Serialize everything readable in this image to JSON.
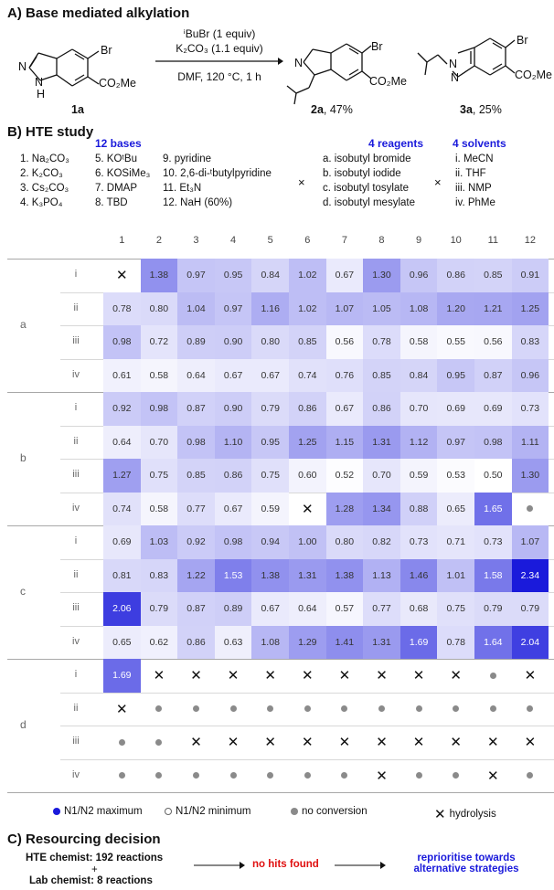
{
  "sectionA": {
    "title": "A) Base mediated alkylation",
    "reagent1": "ⁱBuBr (1 equiv)",
    "reagent2": "K₂CO₃ (1.1 equiv)",
    "conditions": "DMF, 120 °C, 1 h",
    "sm_label": "1a",
    "sm_ester": "CO₂Me",
    "sm_br": "Br",
    "prod2_label": "2a",
    "prod2_yield": ", 47%",
    "prod3_label": "3a",
    "prod3_yield": ", 25%",
    "atom_n": "N",
    "atom_nh": "N",
    "atom_h": "H"
  },
  "sectionB": {
    "title": "B) HTE study",
    "bases_title": "12 bases",
    "bases": [
      "1. Na₂CO₃",
      "2. K₂CO₃",
      "3. Cs₂CO₃",
      "4. K₃PO₄",
      "5. KOᵗBu",
      "6. KOSiMe₃",
      "7. DMAP",
      "8. TBD",
      "9. pyridine",
      "10. 2,6-di-ᵗbutylpyridine",
      "11. Et₃N",
      "12. NaH (60%)"
    ],
    "times": "×",
    "reagents_title": "4 reagents",
    "reagents": [
      "a. isobutyl bromide",
      "b. isobutyl iodide",
      "c. isobutyl tosylate",
      "d. isobutyl mesylate"
    ],
    "solvents_title": "4 solvents",
    "solvents": [
      "i. MeCN",
      "ii. THF",
      "iii. NMP",
      "iv. PhMe"
    ]
  },
  "grid": {
    "columns": [
      "1",
      "2",
      "3",
      "4",
      "5",
      "6",
      "7",
      "8",
      "9",
      "10",
      "11",
      "12"
    ],
    "groups": [
      {
        "name": "a",
        "rows": [
          {
            "solvent": "i",
            "cells": [
              "X",
              "1.38",
              "0.97",
              "0.95",
              "0.84",
              "1.02",
              "0.67",
              "1.30",
              "0.96",
              "0.86",
              "0.85",
              "0.91"
            ]
          },
          {
            "solvent": "ii",
            "cells": [
              "0.78",
              "0.80",
              "1.04",
              "0.97",
              "1.16",
              "1.02",
              "1.07",
              "1.05",
              "1.08",
              "1.20",
              "1.21",
              "1.25"
            ]
          },
          {
            "solvent": "iii",
            "cells": [
              "0.98",
              "0.72",
              "0.89",
              "0.90",
              "0.80",
              "0.85",
              "0.56",
              "0.78",
              "0.58",
              "0.55",
              "0.56",
              "0.83"
            ]
          },
          {
            "solvent": "iv",
            "cells": [
              "0.61",
              "0.58",
              "0.64",
              "0.67",
              "0.67",
              "0.74",
              "0.76",
              "0.85",
              "0.84",
              "0.95",
              "0.87",
              "0.96"
            ]
          }
        ]
      },
      {
        "name": "b",
        "rows": [
          {
            "solvent": "i",
            "cells": [
              "0.92",
              "0.98",
              "0.87",
              "0.90",
              "0.79",
              "0.86",
              "0.67",
              "0.86",
              "0.70",
              "0.69",
              "0.69",
              "0.73"
            ]
          },
          {
            "solvent": "ii",
            "cells": [
              "0.64",
              "0.70",
              "0.98",
              "1.10",
              "0.95",
              "1.25",
              "1.15",
              "1.31",
              "1.12",
              "0.97",
              "0.98",
              "1.11"
            ]
          },
          {
            "solvent": "iii",
            "cells": [
              "1.27",
              "0.75",
              "0.85",
              "0.86",
              "0.75",
              "0.60",
              "0.52",
              "0.70",
              "0.59",
              "0.53",
              "0.50",
              "1.30"
            ]
          },
          {
            "solvent": "iv",
            "cells": [
              "0.74",
              "0.58",
              "0.77",
              "0.67",
              "0.59",
              "X",
              "1.28",
              "1.34",
              "0.88",
              "0.65",
              "1.65",
              "O"
            ]
          }
        ]
      },
      {
        "name": "c",
        "rows": [
          {
            "solvent": "i",
            "cells": [
              "0.69",
              "1.03",
              "0.92",
              "0.98",
              "0.94",
              "1.00",
              "0.80",
              "0.82",
              "0.73",
              "0.71",
              "0.73",
              "1.07"
            ]
          },
          {
            "solvent": "ii",
            "cells": [
              "0.81",
              "0.83",
              "1.22",
              "1.53",
              "1.38",
              "1.31",
              "1.38",
              "1.13",
              "1.46",
              "1.01",
              "1.58",
              "2.34"
            ]
          },
          {
            "solvent": "iii",
            "cells": [
              "2.06",
              "0.79",
              "0.87",
              "0.89",
              "0.67",
              "0.64",
              "0.57",
              "0.77",
              "0.68",
              "0.75",
              "0.79",
              "0.79"
            ]
          },
          {
            "solvent": "iv",
            "cells": [
              "0.65",
              "0.62",
              "0.86",
              "0.63",
              "1.08",
              "1.29",
              "1.41",
              "1.31",
              "1.69",
              "0.78",
              "1.64",
              "2.04"
            ]
          }
        ]
      },
      {
        "name": "d",
        "rows": [
          {
            "solvent": "i",
            "cells": [
              "1.69",
              "X",
              "X",
              "X",
              "X",
              "X",
              "X",
              "X",
              "X",
              "X",
              "O",
              "X"
            ]
          },
          {
            "solvent": "ii",
            "cells": [
              "X",
              "O",
              "O",
              "O",
              "O",
              "O",
              "O",
              "O",
              "O",
              "O",
              "O",
              "O"
            ]
          },
          {
            "solvent": "iii",
            "cells": [
              "O",
              "O",
              "X",
              "X",
              "X",
              "X",
              "X",
              "X",
              "X",
              "X",
              "X",
              "X"
            ]
          },
          {
            "solvent": "iv",
            "cells": [
              "O",
              "O",
              "O",
              "O",
              "O",
              "O",
              "O",
              "X",
              "O",
              "O",
              "X",
              "O"
            ]
          }
        ]
      }
    ]
  },
  "legend": {
    "max": "N1/N2 maximum",
    "min": "N1/N2 minimum",
    "noconv": "no conversion",
    "hydrolysis": "hydrolysis"
  },
  "sectionC": {
    "title": "C) Resourcing decision",
    "hte": "HTE chemist: 192 reactions",
    "plus": "+",
    "lab": "Lab chemist: 8 reactions",
    "nohits": "no hits found",
    "reprioritise1": "reprioritise towards",
    "reprioritise2": "alternative strategies"
  },
  "colors": {
    "max": "#1a1adb",
    "accent_red": "#e01010",
    "blue_text": "#1a1adb"
  }
}
